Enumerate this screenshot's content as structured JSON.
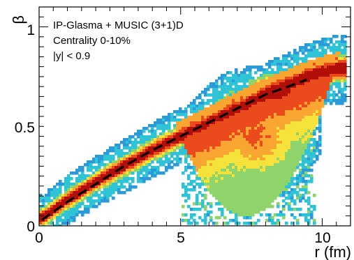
{
  "chart_data": {
    "type": "heatmap",
    "title": "",
    "xlabel": "r (fm)",
    "ylabel": "β",
    "xlim": [
      0,
      11
    ],
    "ylim": [
      0,
      1.1
    ],
    "x_ticks": [
      {
        "value": 0,
        "label": "0"
      },
      {
        "value": 5,
        "label": "5"
      },
      {
        "value": 10,
        "label": "10"
      }
    ],
    "y_ticks": [
      {
        "value": 0,
        "label": "0"
      },
      {
        "value": 0.5,
        "label": "0.5"
      },
      {
        "value": 1,
        "label": "1"
      }
    ],
    "annotations": [
      "IP-Glasma + MUSIC (3+1)D",
      "Centrality 0-10%",
      "|y| < 0.9"
    ],
    "palette": [
      "#2a9bd8",
      "#2fc3d6",
      "#8fd46a",
      "#f5e23a",
      "#f8a531",
      "#ea4a1c",
      "#b20f0b"
    ],
    "band_ridge": {
      "x": [
        0.1,
        1,
        2,
        3,
        4,
        5,
        6,
        7,
        8,
        9,
        9.7,
        10.5
      ],
      "y": [
        0.04,
        0.13,
        0.22,
        0.3,
        0.38,
        0.45,
        0.52,
        0.59,
        0.66,
        0.72,
        0.76,
        0.79
      ]
    },
    "dashed_fit": {
      "x": [
        0.1,
        1,
        2,
        3,
        4,
        5,
        6,
        7,
        8,
        9,
        9.45
      ],
      "y": [
        0.03,
        0.12,
        0.21,
        0.3,
        0.38,
        0.45,
        0.52,
        0.59,
        0.66,
        0.71,
        0.735
      ]
    }
  }
}
